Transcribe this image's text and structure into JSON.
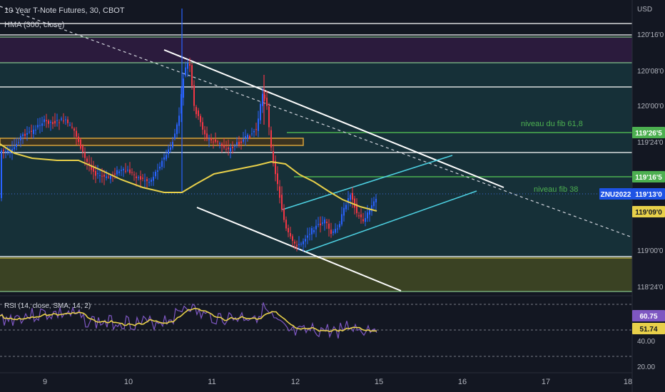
{
  "header": {
    "title": "10 Year T-Note Futures, 30, CBOT",
    "indicator": "HMA (300, close)"
  },
  "rsi_header": "RSI (14, close, SMA, 14, 2)",
  "annotations": {
    "fib_618": "niveau du fib 61,8",
    "fib_38": "niveau fib 38"
  },
  "colors": {
    "background": "#131722",
    "hma": "#e8d04a",
    "rsi": "#7e57c2",
    "rsi_ma": "#e8d04a",
    "zone_purple": "#2b1b3d",
    "zone_teal": "#163038",
    "zone_olive": "#3a4223",
    "fib_line": "#4caf50",
    "channel_cyan": "#4dd0e1",
    "trend_white": "#ffffff",
    "badge_blue": "#1e53e5"
  },
  "chart_data": {
    "type": "candlestick",
    "currency": "USD",
    "y_ticks": [
      "120'16'0",
      "120'08'0",
      "120'00'0",
      "119'24'0",
      "119'00'0",
      "118'24'0"
    ],
    "x_ticks": [
      "9",
      "10",
      "11",
      "12",
      "15",
      "16",
      "17",
      "18"
    ],
    "price_labels": {
      "fib_618": "119'26'5",
      "fib_38": "119'16'5",
      "symbol": "ZNU2022",
      "last": "119'13'0",
      "hma": "119'09'0"
    },
    "rsi": {
      "value": "60.75",
      "ma": "51.74",
      "ticks": [
        "40.00",
        "20.00"
      ]
    }
  }
}
